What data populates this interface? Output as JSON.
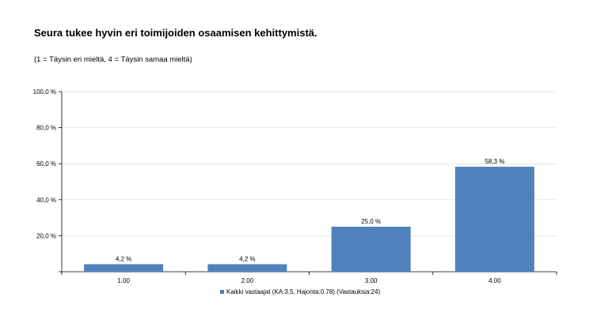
{
  "chart_data": {
    "type": "bar",
    "title": "Seura tukee hyvin eri toimijoiden osaamisen kehittymistä.",
    "subtitle": "(1 = Täysin eri mieltä, 4 = Täysin samaa mieltä)",
    "categories": [
      "1.00",
      "2.00",
      "3.00",
      "4.00"
    ],
    "series": [
      {
        "name": "Kaikki vastaajat (KA:3.5, Hajonta:0.78) (Vastauksia:24)",
        "values": [
          4.2,
          4.2,
          25.0,
          58.3
        ],
        "value_labels": [
          "4,2 %",
          "4,2 %",
          "25,0 %",
          "58,3 %"
        ],
        "color": "#4f81bd"
      }
    ],
    "ylim": [
      0,
      100
    ],
    "yticks": [
      20,
      40,
      60,
      80,
      100
    ],
    "ytick_labels": [
      "20,0 %",
      "40,0 %",
      "60,0 %",
      "80,0 %",
      "100,0 %"
    ],
    "grid": true,
    "legend_position": "bottom"
  }
}
